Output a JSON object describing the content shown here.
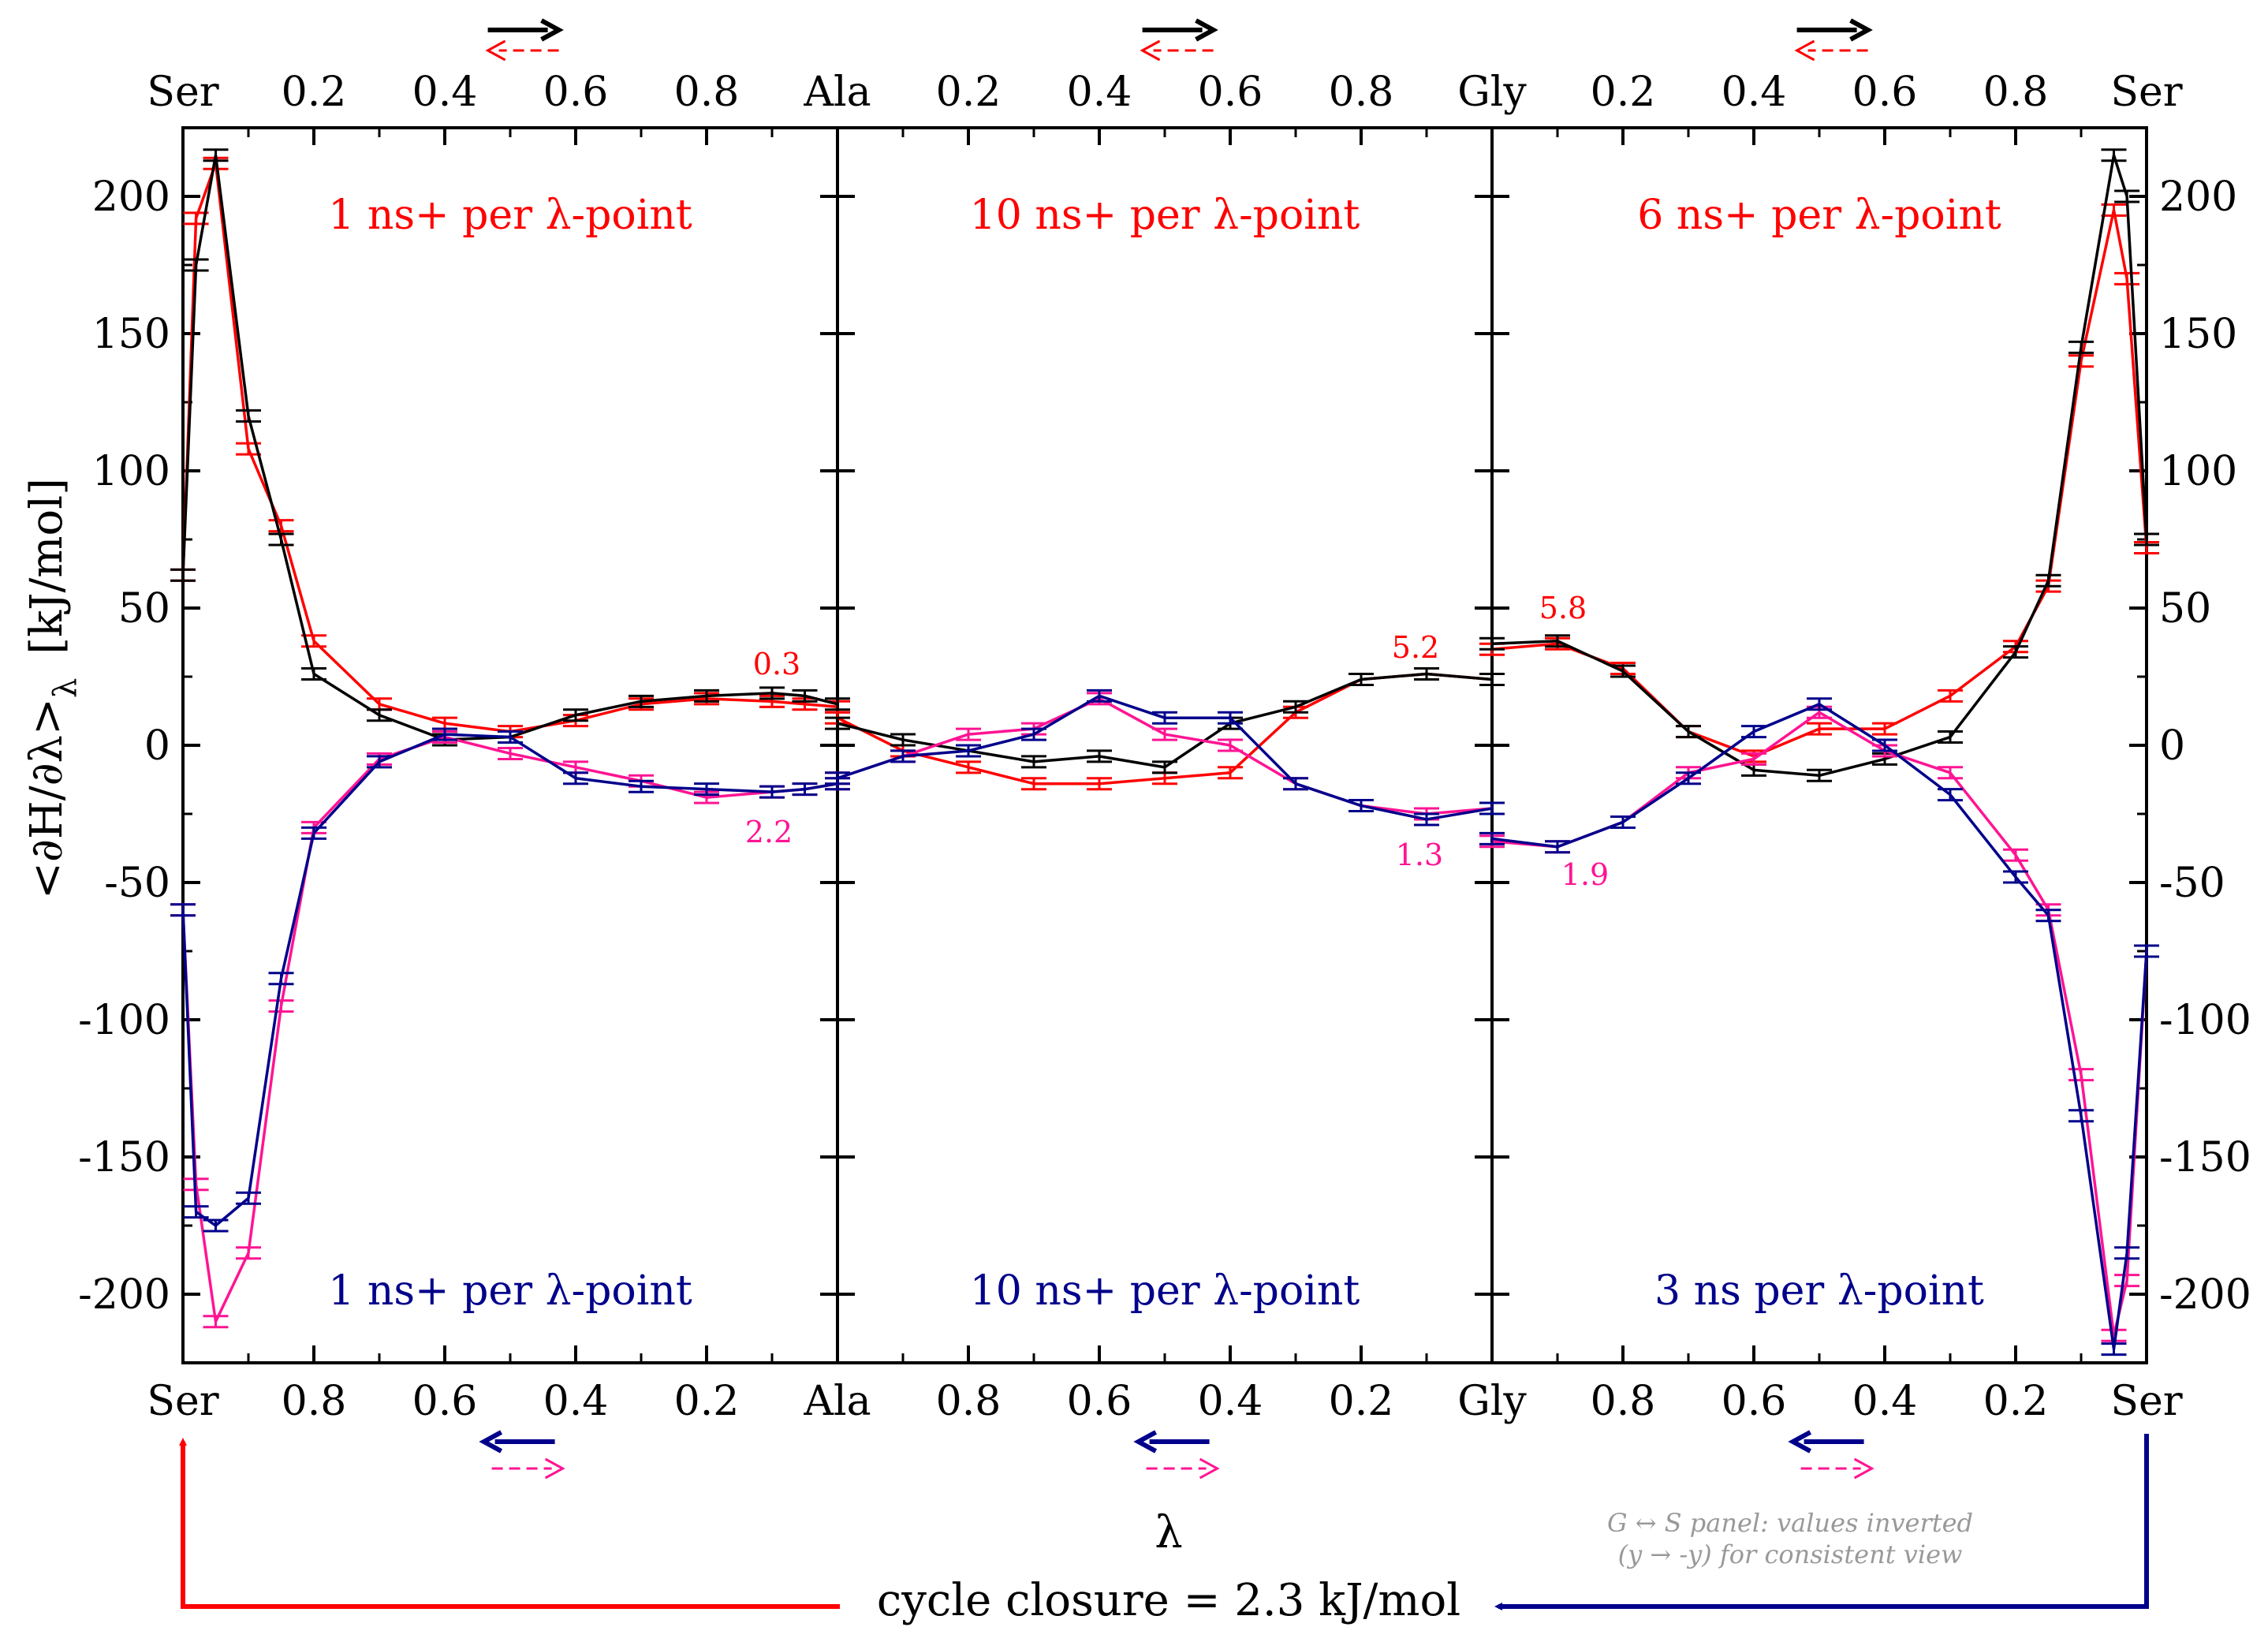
{
  "chart_data": {
    "type": "line",
    "ylabel": "<∂H/∂λ>",
    "ylabel_sub": "λ",
    "ylabel_unit": "[kJ/mol]",
    "xlabel": "λ",
    "ylim": [
      -225,
      225
    ],
    "y_ticks": [
      200,
      150,
      100,
      50,
      0,
      -50,
      -100,
      -150,
      -200
    ],
    "y_tick_labels": [
      "200",
      "150",
      "100",
      "50",
      "0",
      "-50",
      "-100",
      "-150",
      "-200"
    ],
    "top_tick_labels": [
      "Ser",
      "0.2",
      "0.4",
      "0.6",
      "0.8",
      "Ala",
      "0.2",
      "0.4",
      "0.6",
      "0.8",
      "Gly",
      "0.2",
      "0.4",
      "0.6",
      "0.8",
      "Ser"
    ],
    "bottom_tick_labels": [
      "Ser",
      "0.8",
      "0.6",
      "0.4",
      "0.2",
      "Ala",
      "0.8",
      "0.6",
      "0.4",
      "0.2",
      "Gly",
      "0.8",
      "0.6",
      "0.4",
      "0.2",
      "Ser"
    ],
    "colors": {
      "fwd_a": "#ff0000",
      "fwd_b": "#000000",
      "rev_a": "#ff1493",
      "rev_b": "#00008b"
    },
    "panels": [
      {
        "transition": "S→A",
        "top_label": "1 ns+ per λ-point",
        "bottom_label": "1 ns+ per λ-point",
        "forward_value": "0.3",
        "reverse_value": "2.2",
        "lambda": [
          0,
          0.02,
          0.05,
          0.1,
          0.15,
          0.2,
          0.3,
          0.4,
          0.5,
          0.6,
          0.7,
          0.8,
          0.9,
          0.95,
          1.0
        ],
        "series": [
          {
            "name": "forward red",
            "color": "#ff0000",
            "values": [
              62,
              192,
              212,
              108,
              80,
              38,
              15,
              8,
              5,
              9,
              15,
              17,
              16,
              15,
              14
            ]
          },
          {
            "name": "forward black",
            "color": "#000000",
            "values": [
              62,
              175,
              215,
              120,
              75,
              26,
              11,
              2,
              3,
              11,
              16,
              18,
              19,
              18,
              15
            ]
          },
          {
            "name": "reverse magenta",
            "color": "#ff1493",
            "values": [
              -60,
              -160,
              -210,
              -185,
              -95,
              -30,
              -5,
              3,
              -3,
              -8,
              -13,
              -19,
              -17,
              -16,
              -14
            ]
          },
          {
            "name": "reverse navy",
            "color": "#00008b",
            "values": [
              -60,
              -170,
              -175,
              -165,
              -85,
              -32,
              -6,
              4,
              3,
              -12,
              -15,
              -16,
              -17,
              -16,
              -14
            ]
          }
        ]
      },
      {
        "transition": "A→G",
        "top_label": "10 ns+ per λ-point",
        "bottom_label": "10 ns+ per λ-point",
        "forward_value": "5.2",
        "reverse_value": "1.3",
        "lambda": [
          0,
          0.1,
          0.2,
          0.3,
          0.4,
          0.5,
          0.6,
          0.7,
          0.8,
          0.9,
          1.0
        ],
        "series": [
          {
            "name": "forward red",
            "color": "#ff0000",
            "values": [
              10,
              -2,
              -8,
              -14,
              -14,
              -12,
              -10,
              12,
              24,
              26,
              24
            ]
          },
          {
            "name": "forward black",
            "color": "#000000",
            "values": [
              8,
              2,
              -2,
              -6,
              -4,
              -8,
              8,
              14,
              24,
              26,
              24
            ]
          },
          {
            "name": "reverse magenta",
            "color": "#ff1493",
            "values": [
              -12,
              -4,
              4,
              6,
              17,
              4,
              0,
              -14,
              -22,
              -25,
              -23
            ]
          },
          {
            "name": "reverse navy",
            "color": "#00008b",
            "values": [
              -12,
              -4,
              -2,
              4,
              18,
              10,
              10,
              -14,
              -22,
              -27,
              -23
            ]
          }
        ]
      },
      {
        "transition": "G→S",
        "top_label": "6 ns+ per λ-point",
        "bottom_label": "3 ns per λ-point",
        "forward_value": "5.8",
        "reverse_value": "1.9",
        "lambda": [
          0,
          0.1,
          0.2,
          0.3,
          0.4,
          0.5,
          0.6,
          0.7,
          0.8,
          0.85,
          0.9,
          0.95,
          0.97,
          1.0
        ],
        "series": [
          {
            "name": "forward red",
            "color": "#ff0000",
            "values": [
              35,
              37,
              28,
              5,
              -4,
              6,
              6,
              18,
              36,
              58,
              140,
              195,
              170,
              72
            ]
          },
          {
            "name": "forward black",
            "color": "#000000",
            "values": [
              37,
              38,
              27,
              5,
              -9,
              -11,
              -5,
              3,
              34,
              60,
              145,
              215,
              200,
              75
            ]
          },
          {
            "name": "reverse magenta",
            "color": "#ff1493",
            "values": [
              -35,
              -37,
              -28,
              -10,
              -5,
              12,
              -2,
              -10,
              -40,
              -60,
              -120,
              -215,
              -195,
              -75
            ]
          },
          {
            "name": "reverse navy",
            "color": "#00008b",
            "values": [
              -34,
              -37,
              -28,
              -12,
              5,
              15,
              0,
              -18,
              -48,
              -62,
              -135,
              -220,
              -185,
              -75
            ]
          }
        ]
      }
    ],
    "cycle_closure": "cycle closure = 2.3 kJ/mol",
    "note_line1": "G ↔ S panel: values inverted",
    "note_line2": "(y → -y) for consistent view"
  }
}
